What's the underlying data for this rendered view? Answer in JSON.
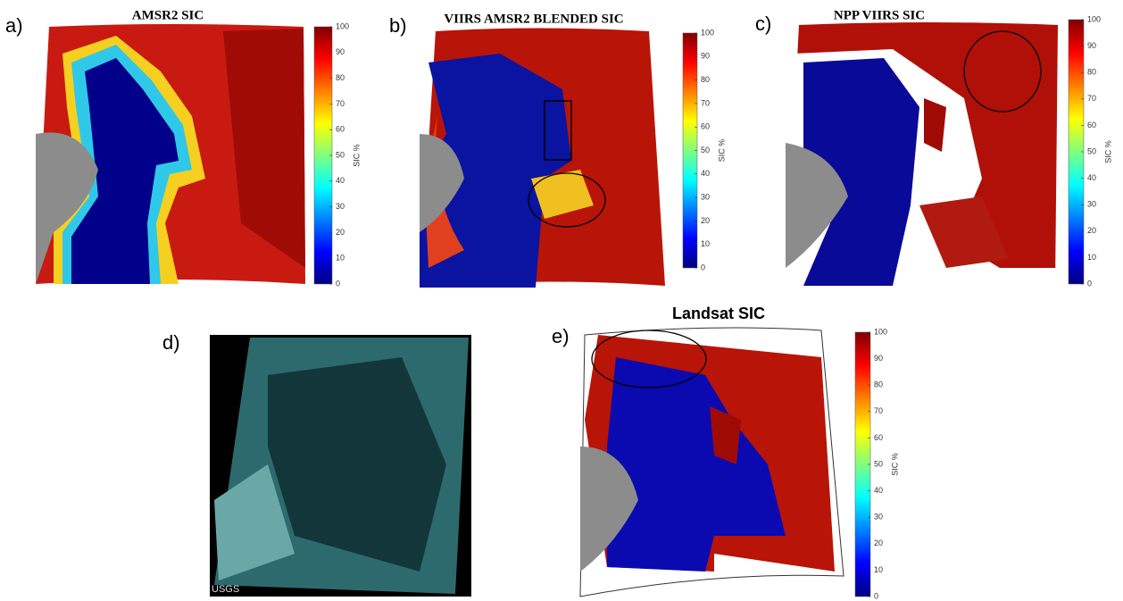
{
  "panels": [
    {
      "label": "a)",
      "title": "AMSR2 SIC"
    },
    {
      "label": "b)",
      "title": "VIIRS AMSR2 BLENDED SIC"
    },
    {
      "label": "c)",
      "title": "NPP VIIRS SIC"
    },
    {
      "label": "d)",
      "watermark": "USGS"
    },
    {
      "label": "e)",
      "title": "Landsat SIC"
    }
  ],
  "colorbar": {
    "label": "SIC %",
    "ticks": [
      0,
      10,
      20,
      30,
      40,
      50,
      60,
      70,
      80,
      90,
      100
    ]
  }
}
